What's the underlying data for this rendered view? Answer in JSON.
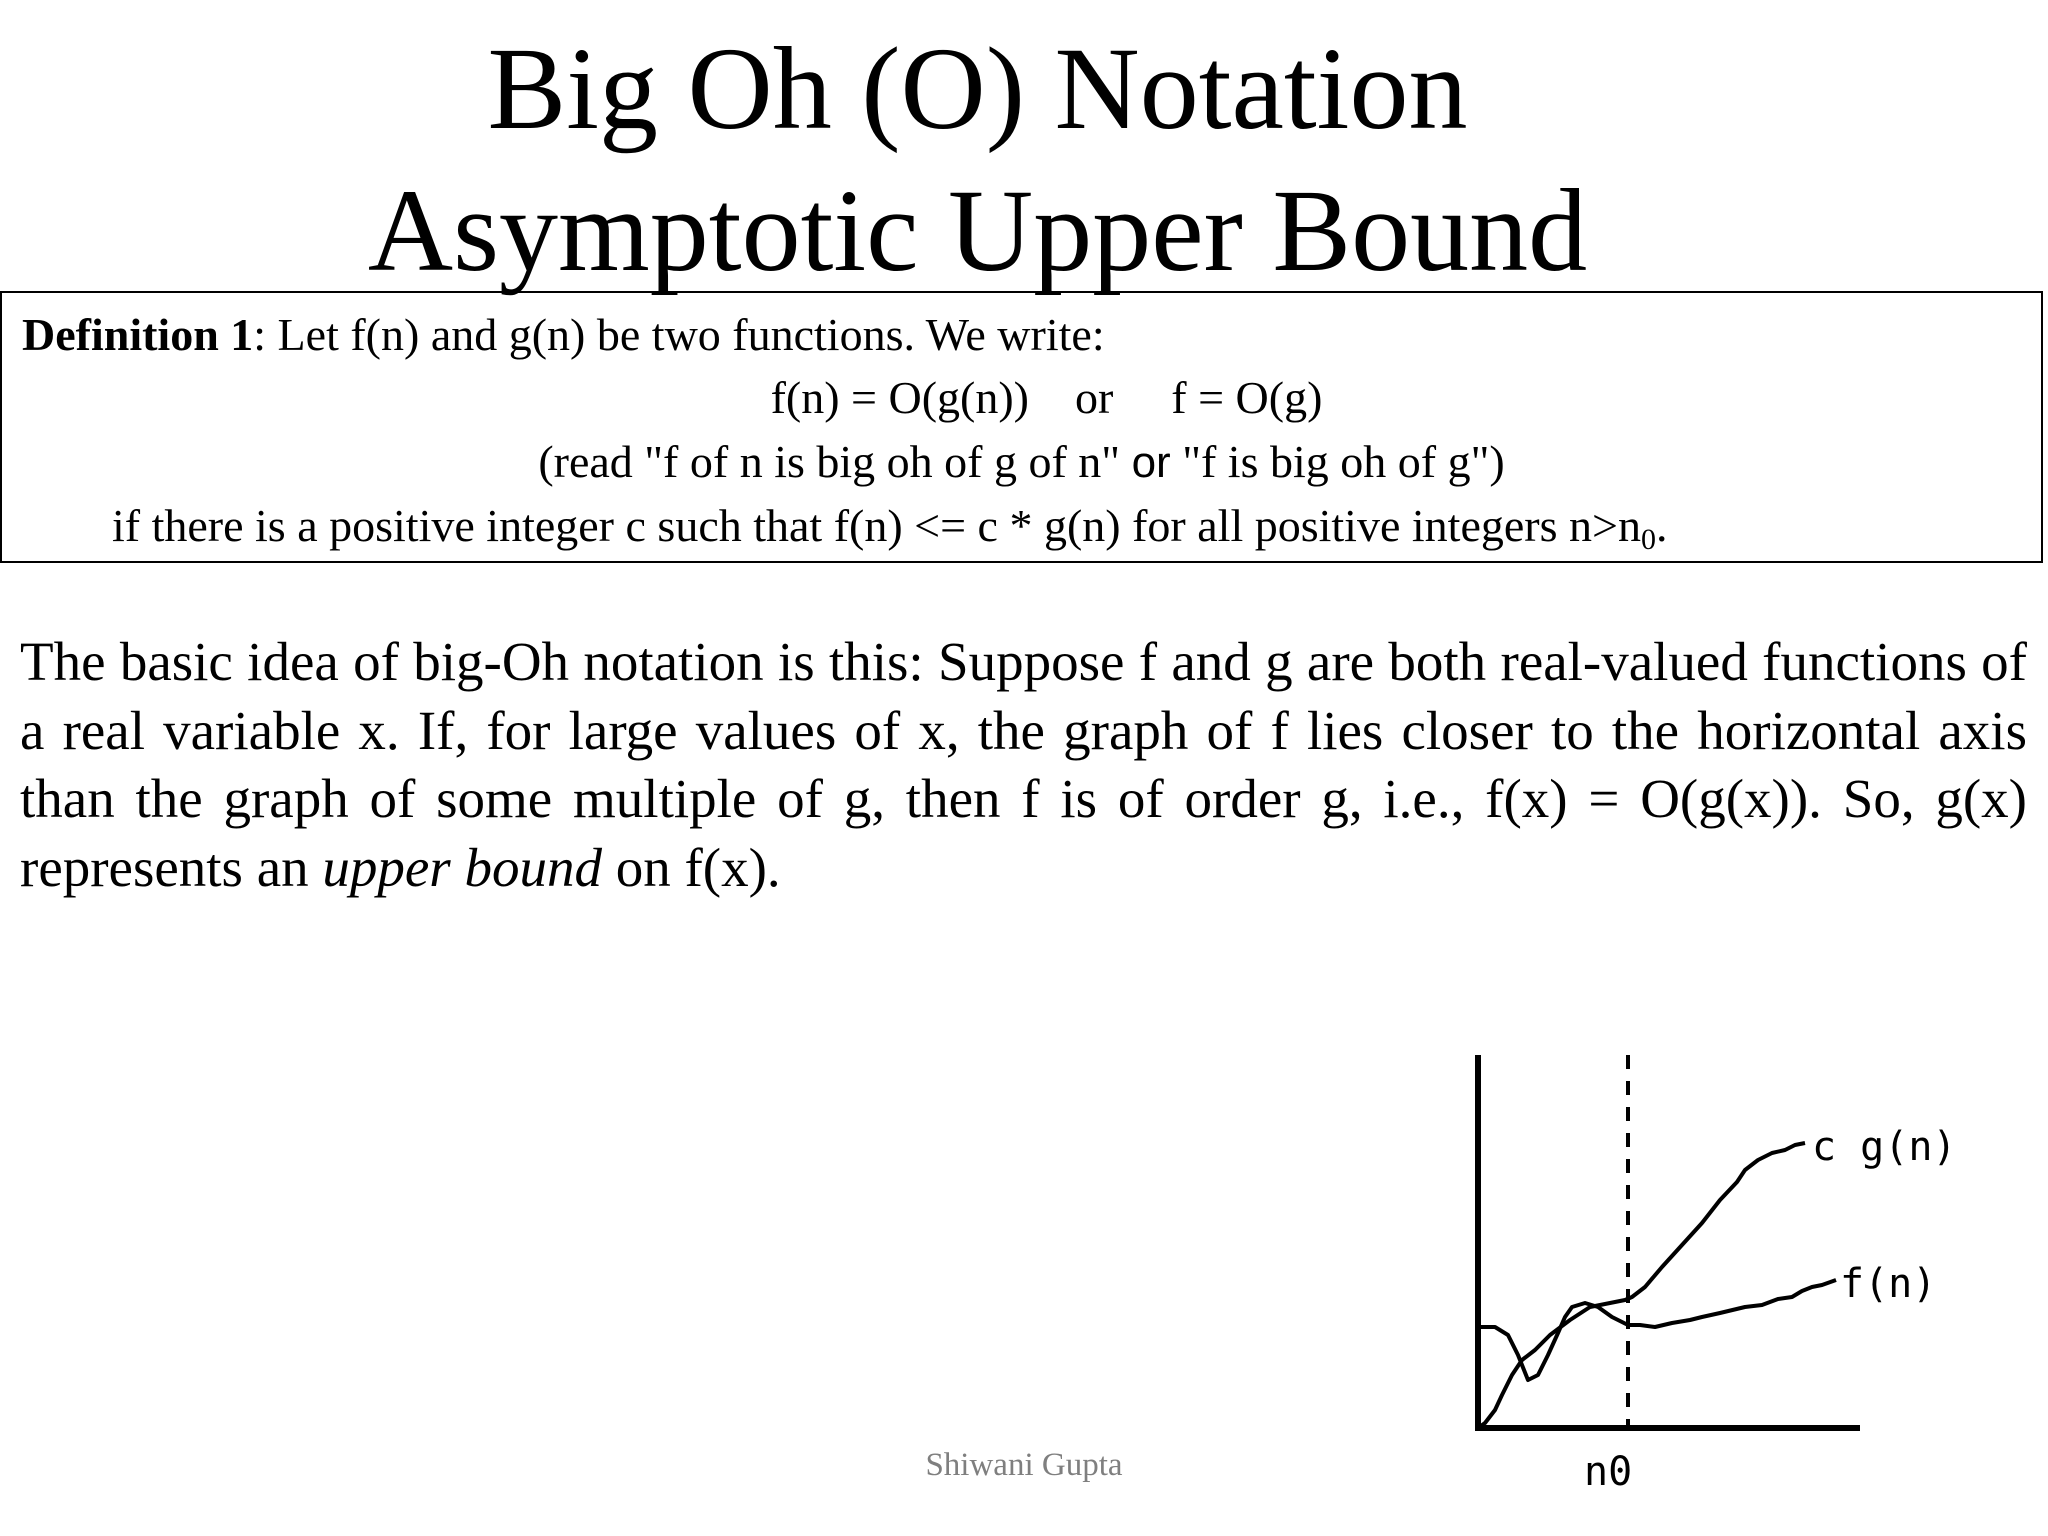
{
  "title": {
    "line1": "Big Oh (O) Notation",
    "line2": "Asymptotic Upper Bound"
  },
  "definition": {
    "label": "Definition 1",
    "intro": ": Let f(n) and g(n) be two functions.  We write:",
    "formula_left": "f(n) = O(g(n))",
    "formula_or": "or",
    "formula_right": "f = O(g)",
    "read_part1": "(read \"f of n is big oh of g of n\" ",
    "read_or": "or",
    "read_part2": " \"f is big oh of g\")",
    "condition": "if there is a positive integer c such that f(n) <= c * g(n) for all positive integers n>n",
    "condition_sub": "0",
    "condition_end": "."
  },
  "paragraph": {
    "before_italic": "The basic idea of big-Oh notation is this: Suppose f and g are both real-valued functions of a real variable x. If, for large values of x, the graph of f lies closer to the horizontal axis than the graph of some multiple of g, then f is of order g, i.e., f(x) = O(g(x)). So, g(x) represents an ",
    "italic": "upper bound",
    "after_italic": " on f(x)."
  },
  "graph": {
    "label_cg": "c g(n)",
    "label_f": "f(n)",
    "label_n0": "n0"
  },
  "footer": {
    "author": "Shiwani Gupta"
  }
}
